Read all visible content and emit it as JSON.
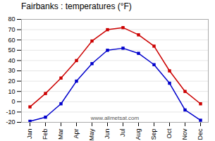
{
  "chart_data": {
    "type": "line",
    "title": "Fairbanks : temperatures (°F)",
    "categories": [
      "Jan",
      "Feb",
      "Mar",
      "Apr",
      "May",
      "Jun",
      "Jul",
      "Aug",
      "Sep",
      "Oct",
      "Nov",
      "Dec"
    ],
    "series": [
      {
        "color": "#cc0000",
        "marker": "square",
        "values": [
          -5,
          8,
          23,
          40,
          59,
          70,
          72,
          65,
          54,
          30,
          10,
          -2
        ]
      },
      {
        "color": "#0000cc",
        "marker": "square",
        "values": [
          -19,
          -15,
          -2,
          20,
          37,
          50,
          52,
          47,
          36,
          18,
          -8,
          -18
        ]
      }
    ],
    "ylim": [
      -20,
      80
    ],
    "yticks": [
      -20,
      -10,
      0,
      10,
      20,
      30,
      40,
      50,
      60,
      70,
      80
    ],
    "grid": true,
    "annotations": [
      "www.allmetsat.com"
    ]
  }
}
